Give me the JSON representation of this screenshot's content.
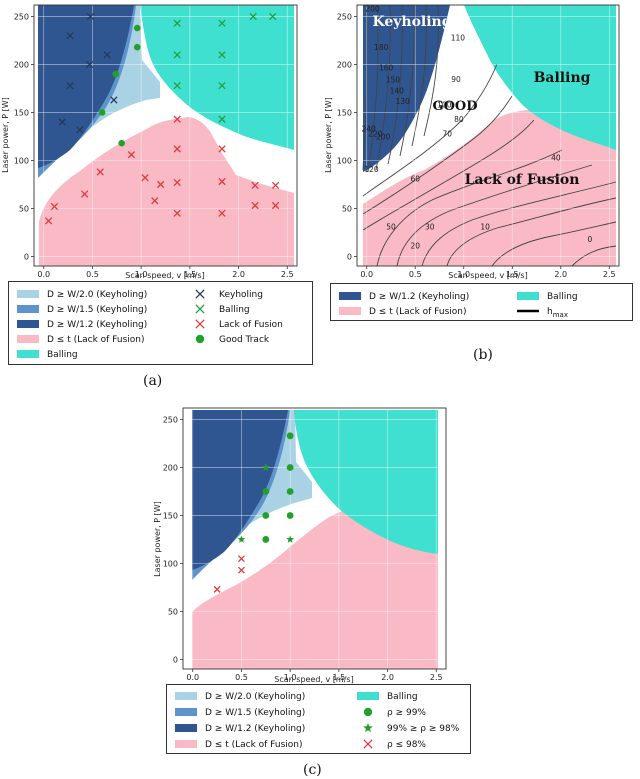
{
  "figure": {
    "panel_labels": [
      "(a)",
      "(b)",
      "(c)"
    ]
  },
  "colors": {
    "keyhole_12": "#2f5691",
    "keyhole_15": "#5f93cc",
    "keyhole_20": "#a9d2e4",
    "lof": "#f9b9c5",
    "balling": "#40e0d0",
    "good_track": "#22a02a",
    "lof_marker": "#e03c3c",
    "keyhole_marker": "#233a5e",
    "balling_marker": "#22a040",
    "contour": "#444444"
  },
  "legends": {
    "a": [
      {
        "kind": "patch",
        "color": "keyhole_20",
        "text": "D ≥ W/2.0 (Keyholing)"
      },
      {
        "kind": "marker-x",
        "color": "keyhole_marker",
        "text": "Keyholing"
      },
      {
        "kind": "patch",
        "color": "keyhole_15",
        "text": "D ≥ W/1.5 (Keyholing)"
      },
      {
        "kind": "marker-x",
        "color": "balling_marker",
        "text": "Balling"
      },
      {
        "kind": "patch",
        "color": "keyhole_12",
        "text": "D ≥ W/1.2 (Keyholing)"
      },
      {
        "kind": "marker-x",
        "color": "lof_marker",
        "text": "Lack of Fusion"
      },
      {
        "kind": "patch",
        "color": "lof",
        "text": "D ≤ t (Lack of Fusion)"
      },
      {
        "kind": "marker-circle",
        "color": "good_track",
        "text": "Good Track"
      },
      {
        "kind": "patch",
        "color": "balling",
        "text": "Balling"
      }
    ],
    "b": [
      {
        "kind": "patch",
        "color": "keyhole_12",
        "text": "D ≥ W/1.2 (Keyholing)"
      },
      {
        "kind": "patch",
        "color": "balling",
        "text": "Balling"
      },
      {
        "kind": "patch",
        "color": "lof",
        "text": "D ≤ t (Lack of Fusion)"
      },
      {
        "kind": "line",
        "color": "#000000",
        "text": "h_max"
      }
    ],
    "c": [
      {
        "kind": "patch",
        "color": "keyhole_20",
        "text": "D ≥ W/2.0 (Keyholing)"
      },
      {
        "kind": "patch",
        "color": "balling",
        "text": "Balling"
      },
      {
        "kind": "patch",
        "color": "keyhole_15",
        "text": "D ≥ W/1.5 (Keyholing)"
      },
      {
        "kind": "marker-circle",
        "color": "good_track",
        "text": "ρ ≥ 99%"
      },
      {
        "kind": "patch",
        "color": "keyhole_12",
        "text": "D ≥ W/1.2 (Keyholing)"
      },
      {
        "kind": "marker-star",
        "color": "good_track",
        "text": "99% ≥ ρ ≥ 98%"
      },
      {
        "kind": "patch",
        "color": "lof",
        "text": "D ≤ t (Lack of Fusion)"
      },
      {
        "kind": "marker-x",
        "color": "lof_marker",
        "text": "ρ ≤ 98%"
      }
    ]
  },
  "chart_data": [
    {
      "panel": "a",
      "type": "scatter",
      "xlabel": "Scan speed, v [m/s]",
      "ylabel": "Laser power, P [W]",
      "xlim": [
        -0.1,
        2.6
      ],
      "ylim": [
        -10,
        262
      ],
      "xticks": [
        0.0,
        0.5,
        1.0,
        1.5,
        2.0,
        2.5
      ],
      "yticks": [
        0,
        50,
        100,
        150,
        200,
        250
      ],
      "grid": true,
      "series": [
        {
          "name": "Keyholing",
          "marker": "x",
          "points": [
            [
              0.27,
              230
            ],
            [
              0.48,
              250
            ],
            [
              0.65,
              210
            ],
            [
              0.47,
              200
            ],
            [
              0.27,
              178
            ],
            [
              0.19,
              140
            ],
            [
              0.37,
              132
            ],
            [
              0.72,
              163
            ]
          ]
        },
        {
          "name": "Balling",
          "marker": "x",
          "points": [
            [
              1.37,
              243
            ],
            [
              1.83,
              243
            ],
            [
              2.15,
              250
            ],
            [
              2.35,
              250
            ],
            [
              1.37,
              210
            ],
            [
              1.83,
              210
            ],
            [
              1.37,
              178
            ],
            [
              1.83,
              178
            ],
            [
              1.83,
              143
            ]
          ]
        },
        {
          "name": "Lack of Fusion",
          "marker": "x",
          "points": [
            [
              0.05,
              37
            ],
            [
              0.11,
              52
            ],
            [
              0.42,
              65
            ],
            [
              0.58,
              88
            ],
            [
              0.9,
              106
            ],
            [
              1.04,
              82
            ],
            [
              1.14,
              58
            ],
            [
              1.2,
              75
            ],
            [
              1.37,
              143
            ],
            [
              1.37,
              112
            ],
            [
              1.37,
              77
            ],
            [
              1.37,
              45
            ],
            [
              1.83,
              112
            ],
            [
              1.83,
              78
            ],
            [
              1.83,
              45
            ],
            [
              2.17,
              74
            ],
            [
              2.17,
              53
            ],
            [
              2.38,
              74
            ],
            [
              2.38,
              53
            ]
          ]
        },
        {
          "name": "Good Track",
          "marker": "circle",
          "points": [
            [
              0.96,
              238
            ],
            [
              0.96,
              218
            ],
            [
              0.74,
              190
            ],
            [
              0.6,
              150
            ],
            [
              0.8,
              118
            ]
          ]
        }
      ]
    },
    {
      "panel": "b",
      "type": "contour",
      "xlabel": "Scan speed, v [m/s]",
      "ylabel": "Laser power, P [W]",
      "xlim": [
        -0.1,
        2.6
      ],
      "ylim": [
        -10,
        262
      ],
      "xticks": [
        0.0,
        0.5,
        1.0,
        1.5,
        2.0,
        2.5
      ],
      "yticks": [
        0,
        50,
        100,
        150,
        200,
        250
      ],
      "grid": true,
      "region_labels": [
        "Keyholing",
        "GOOD",
        "Balling",
        "Lack of Fusion"
      ],
      "contour_labels": [
        {
          "text": "200",
          "x": 0.06,
          "y": 255
        },
        {
          "text": "180",
          "x": 0.15,
          "y": 215
        },
        {
          "text": "160",
          "x": 0.2,
          "y": 194
        },
        {
          "text": "150",
          "x": 0.27,
          "y": 181
        },
        {
          "text": "140",
          "x": 0.31,
          "y": 170
        },
        {
          "text": "130",
          "x": 0.37,
          "y": 159
        },
        {
          "text": "240",
          "x": 0.02,
          "y": 130
        },
        {
          "text": "220",
          "x": 0.09,
          "y": 125
        },
        {
          "text": "200",
          "x": 0.17,
          "y": 122
        },
        {
          "text": "120",
          "x": 0.05,
          "y": 88
        },
        {
          "text": "110",
          "x": 0.94,
          "y": 225
        },
        {
          "text": "90",
          "x": 0.92,
          "y": 182
        },
        {
          "text": "100",
          "x": 0.8,
          "y": 155
        },
        {
          "text": "80",
          "x": 0.95,
          "y": 140
        },
        {
          "text": "70",
          "x": 0.83,
          "y": 125
        },
        {
          "text": "60",
          "x": 0.5,
          "y": 78
        },
        {
          "text": "50",
          "x": 0.25,
          "y": 28
        },
        {
          "text": "40",
          "x": 1.95,
          "y": 100
        },
        {
          "text": "30",
          "x": 0.65,
          "y": 28
        },
        {
          "text": "20",
          "x": 0.5,
          "y": 8
        },
        {
          "text": "10",
          "x": 1.22,
          "y": 28
        },
        {
          "text": "0",
          "x": 2.3,
          "y": 15
        }
      ]
    },
    {
      "panel": "c",
      "type": "scatter",
      "xlabel": "Scan speed, v [m/s]",
      "ylabel": "Laser power, P [W]",
      "xlim": [
        -0.1,
        2.6
      ],
      "ylim": [
        -10,
        262
      ],
      "xticks": [
        0.0,
        0.5,
        1.0,
        1.5,
        2.0,
        2.5
      ],
      "yticks": [
        0,
        50,
        100,
        150,
        200,
        250
      ],
      "grid": true,
      "series": [
        {
          "name": "ρ ≥ 99%",
          "marker": "circle",
          "points": [
            [
              1.0,
              233
            ],
            [
              1.0,
              200
            ],
            [
              0.75,
              175
            ],
            [
              1.0,
              175
            ],
            [
              0.75,
              150
            ],
            [
              1.0,
              150
            ],
            [
              0.75,
              125
            ]
          ]
        },
        {
          "name": "99% ≥ ρ ≥ 98%",
          "marker": "star",
          "points": [
            [
              0.5,
              125
            ],
            [
              0.75,
              200
            ],
            [
              1.0,
              125
            ]
          ]
        },
        {
          "name": "ρ ≤ 98%",
          "marker": "x",
          "points": [
            [
              0.25,
              73
            ],
            [
              0.5,
              93
            ],
            [
              0.5,
              105
            ]
          ]
        }
      ]
    }
  ]
}
